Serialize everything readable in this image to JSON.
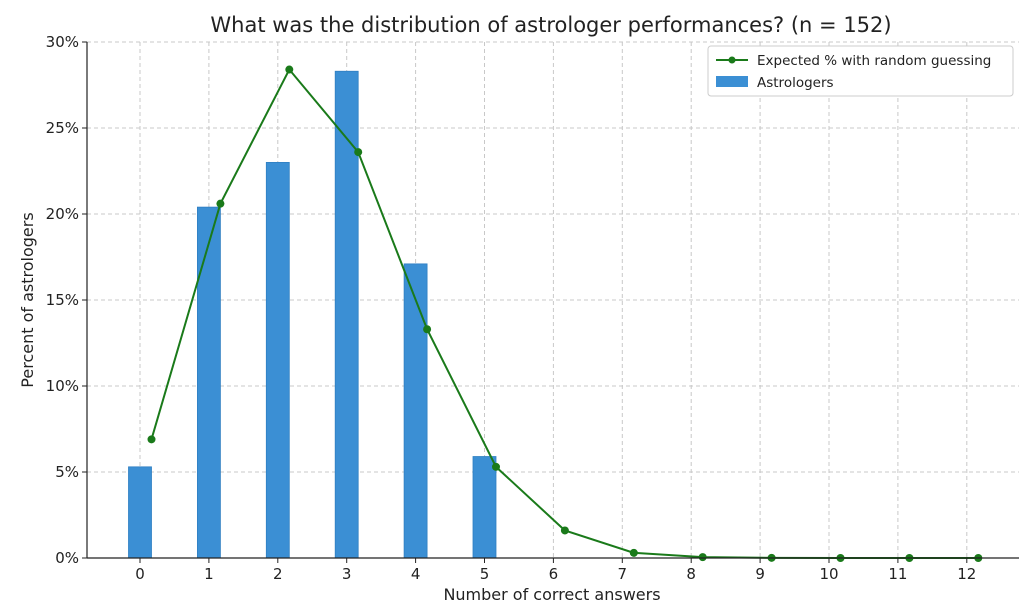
{
  "chart_data": {
    "type": "bar",
    "title": "What was the distribution of astrologer performances? (n = 152)",
    "xlabel": "Number of correct answers",
    "ylabel": "Percent of astrologers",
    "categories": [
      "0",
      "1",
      "2",
      "3",
      "4",
      "5",
      "6",
      "7",
      "8",
      "9",
      "10",
      "11",
      "12"
    ],
    "ylim": [
      0,
      30
    ],
    "yticks": [
      "0%",
      "5%",
      "10%",
      "15%",
      "20%",
      "25%",
      "30%"
    ],
    "ytick_values": [
      0,
      5,
      10,
      15,
      20,
      25,
      30
    ],
    "grid": true,
    "legend_position": "top-right",
    "series": [
      {
        "name": "Astrologers",
        "type": "bar",
        "color": "#3b8fd4",
        "values": [
          5.3,
          20.4,
          23.0,
          28.3,
          17.1,
          5.9,
          0,
          0,
          0,
          0,
          0,
          0,
          0
        ]
      },
      {
        "name": "Expected % with random guessing",
        "type": "line",
        "color": "#1a7a1a",
        "values": [
          6.9,
          20.6,
          28.4,
          23.6,
          13.3,
          5.3,
          1.6,
          0.3,
          0.05,
          0.01,
          0.0,
          0.0,
          0.0
        ]
      }
    ]
  }
}
